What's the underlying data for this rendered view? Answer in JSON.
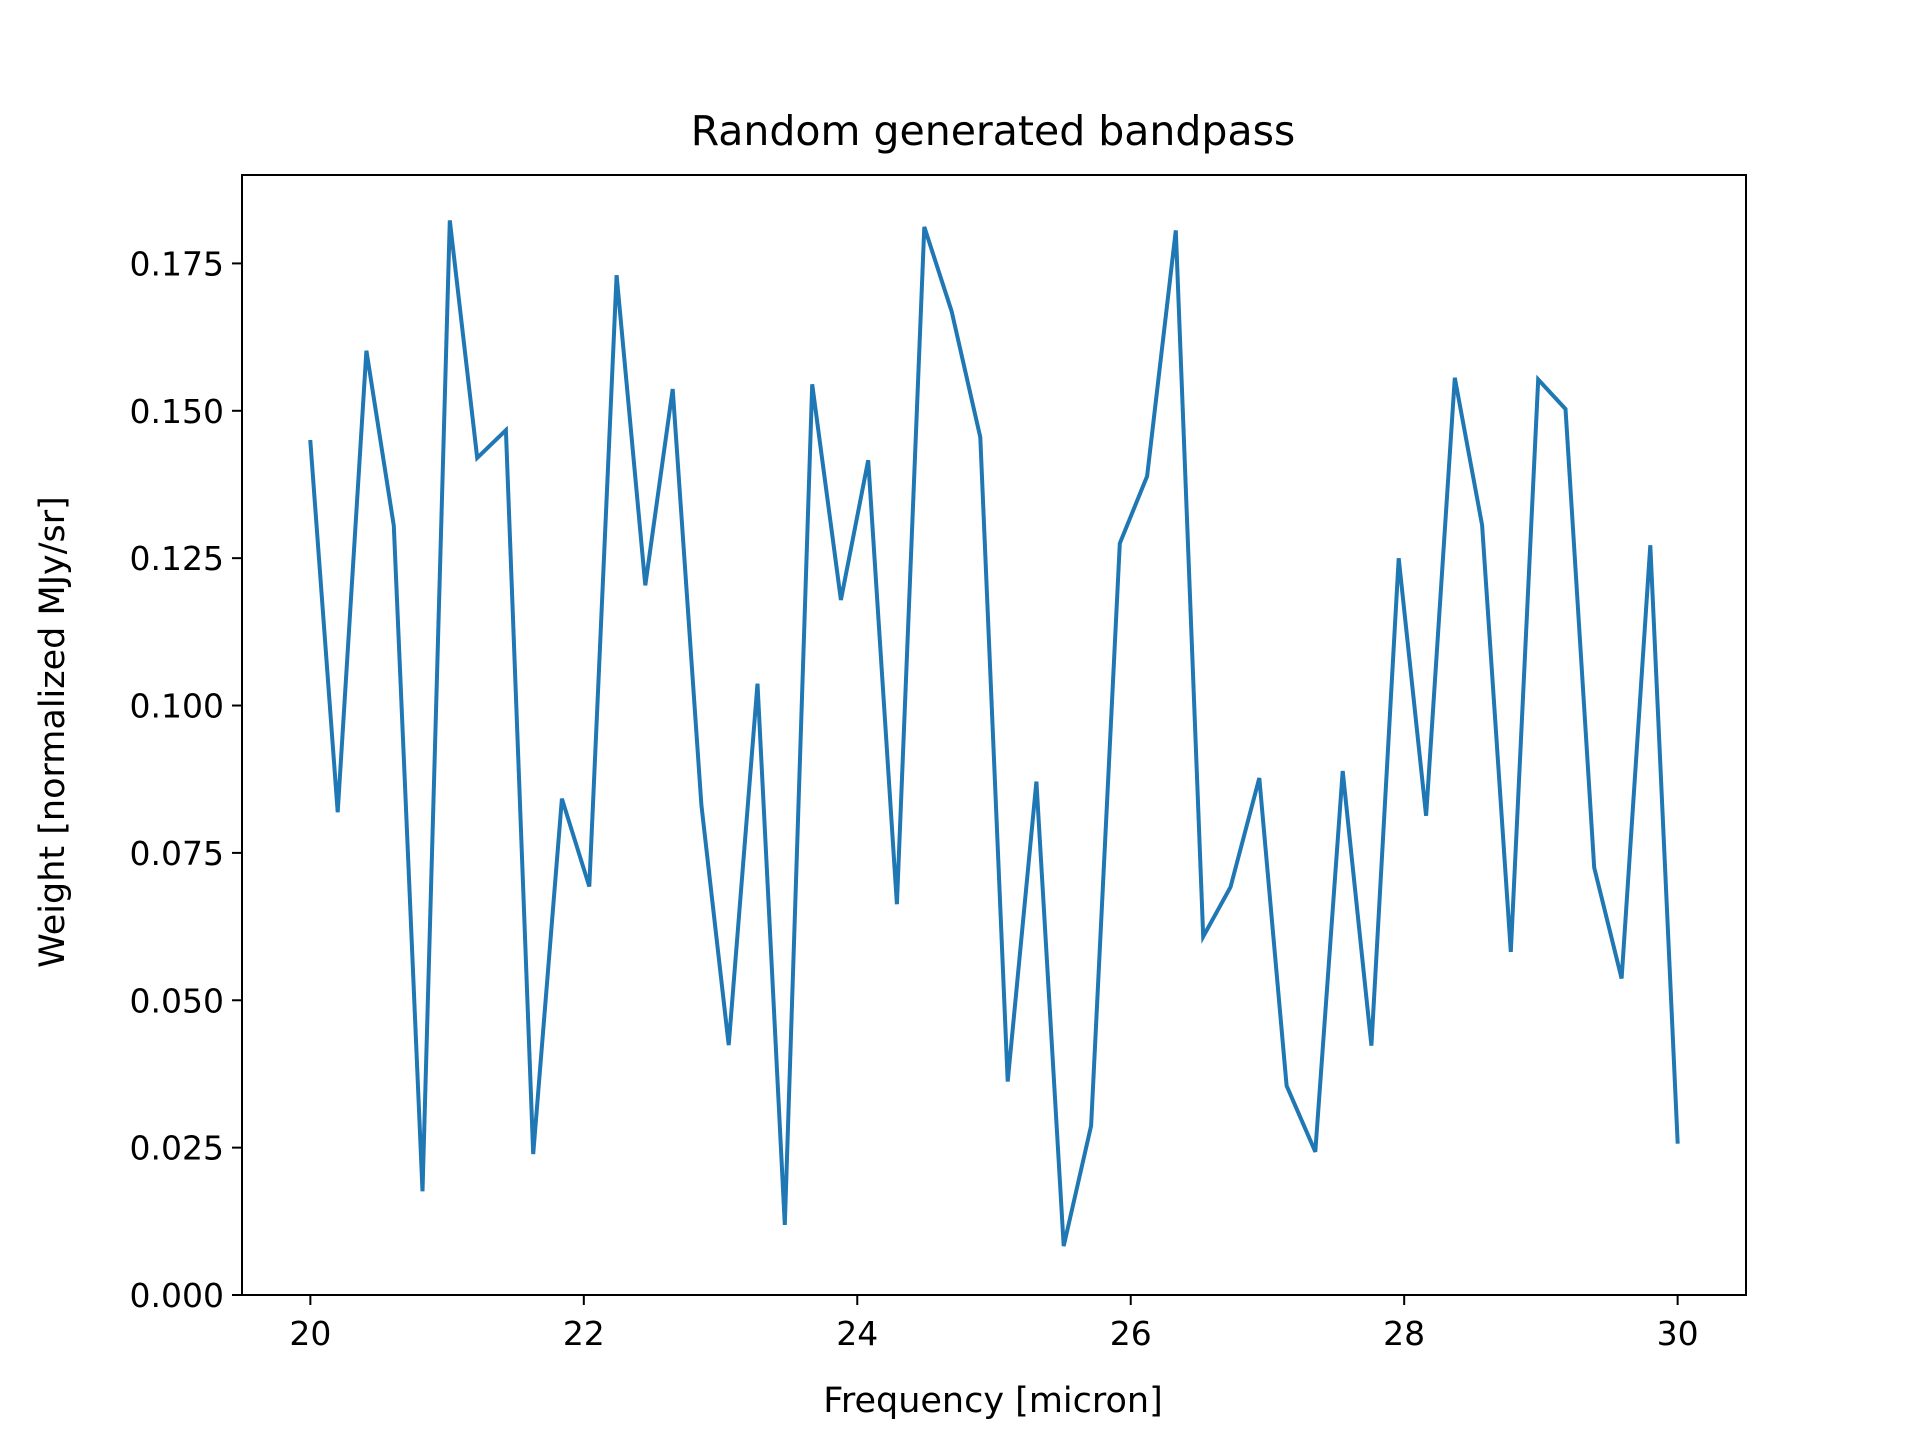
{
  "chart_data": {
    "type": "line",
    "title": "Random generated bandpass",
    "xlabel": "Frequency [micron]",
    "ylabel": "Weight [normalized MJy/sr]",
    "xlim": [
      19.5,
      30.5
    ],
    "ylim": [
      0.0,
      0.19
    ],
    "xticks": [
      20,
      22,
      24,
      26,
      28,
      30
    ],
    "xtick_labels": [
      "20",
      "22",
      "24",
      "26",
      "28",
      "30"
    ],
    "yticks": [
      0.0,
      0.025,
      0.05,
      0.075,
      0.1,
      0.125,
      0.15,
      0.175
    ],
    "ytick_labels": [
      "0.000",
      "0.025",
      "0.050",
      "0.075",
      "0.100",
      "0.125",
      "0.150",
      "0.175"
    ],
    "grid": false,
    "series": [
      {
        "color": "#1f77b4",
        "x": [
          20.0,
          20.2,
          20.41,
          20.61,
          20.82,
          21.02,
          21.22,
          21.43,
          21.63,
          21.84,
          22.04,
          22.24,
          22.45,
          22.65,
          22.86,
          23.06,
          23.27,
          23.47,
          23.67,
          23.88,
          24.08,
          24.29,
          24.49,
          24.69,
          24.9,
          25.1,
          25.31,
          25.51,
          25.71,
          25.92,
          26.12,
          26.33,
          26.53,
          26.73,
          26.94,
          27.14,
          27.35,
          27.55,
          27.76,
          27.96,
          28.16,
          28.37,
          28.57,
          28.78,
          28.98,
          29.18,
          29.39,
          29.59,
          29.8,
          30.0
        ],
        "y": [
          0.1447,
          0.0819,
          0.1602,
          0.1305,
          0.0176,
          0.1823,
          0.142,
          0.1467,
          0.0239,
          0.0842,
          0.0693,
          0.173,
          0.1204,
          0.1537,
          0.0831,
          0.0424,
          0.1037,
          0.0119,
          0.1545,
          0.1179,
          0.1416,
          0.0663,
          0.1812,
          0.1669,
          0.1455,
          0.0362,
          0.0871,
          0.0083,
          0.0287,
          0.1275,
          0.1389,
          0.1806,
          0.0608,
          0.0692,
          0.0877,
          0.0355,
          0.0243,
          0.0889,
          0.0423,
          0.125,
          0.0813,
          0.1556,
          0.1306,
          0.0582,
          0.1553,
          0.1503,
          0.0725,
          0.0537,
          0.1272,
          0.026
        ]
      }
    ]
  }
}
